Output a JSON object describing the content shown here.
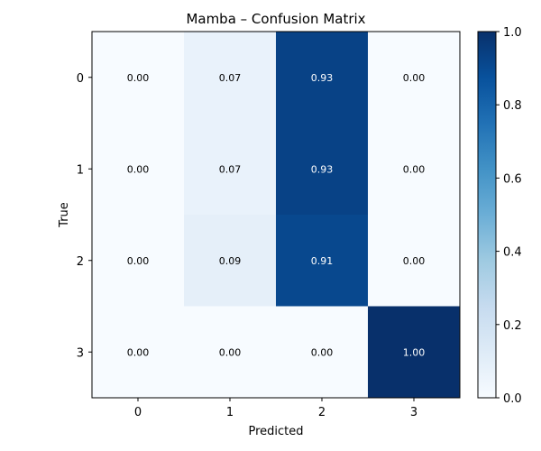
{
  "chart_data": {
    "type": "heatmap",
    "title": "Mamba – Confusion Matrix",
    "xlabel": "Predicted",
    "ylabel": "True",
    "x_categories": [
      "0",
      "1",
      "2",
      "3"
    ],
    "y_categories": [
      "0",
      "1",
      "2",
      "3"
    ],
    "values": [
      [
        0.0,
        0.07,
        0.93,
        0.0
      ],
      [
        0.0,
        0.07,
        0.93,
        0.0
      ],
      [
        0.0,
        0.09,
        0.91,
        0.0
      ],
      [
        0.0,
        0.0,
        0.0,
        1.0
      ]
    ],
    "value_format_decimals": 2,
    "colorbar": {
      "range": [
        0.0,
        1.0
      ],
      "ticks": [
        "0.0",
        "0.2",
        "0.4",
        "0.6",
        "0.8",
        "1.0"
      ],
      "colormap": "Blues"
    },
    "grid": false
  }
}
